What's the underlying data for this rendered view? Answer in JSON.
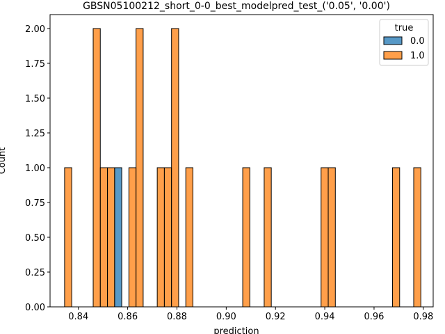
{
  "chart_data": {
    "type": "bar",
    "title": "GBSN05100212_short_0-0_best_modelpred_test_('0.05', '0.00')",
    "xlabel": "prediction",
    "ylabel": "Count",
    "xlim": [
      0.8285,
      0.984
    ],
    "ylim": [
      0,
      2.1
    ],
    "x_ticks": [
      0.84,
      0.86,
      0.88,
      0.9,
      0.92,
      0.94,
      0.96,
      0.98
    ],
    "x_tick_labels": [
      "0.84",
      "0.86",
      "0.88",
      "0.90",
      "0.92",
      "0.94",
      "0.96",
      "0.98"
    ],
    "y_ticks": [
      0.0,
      0.25,
      0.5,
      0.75,
      1.0,
      1.25,
      1.5,
      1.75,
      2.0
    ],
    "y_tick_labels": [
      "0.00",
      "0.25",
      "0.50",
      "0.75",
      "1.00",
      "1.25",
      "1.50",
      "1.75",
      "2.00"
    ],
    "bin_width": 0.00289,
    "legend": {
      "title": "true",
      "placement": "top-right"
    },
    "series": [
      {
        "name": "0.0",
        "color": "#1f77b4",
        "bins": [
          {
            "x0": 0.8547,
            "count": 1
          }
        ]
      },
      {
        "name": "1.0",
        "color": "#ff7f0e",
        "bins": [
          {
            "x0": 0.8344,
            "count": 1
          },
          {
            "x0": 0.846,
            "count": 2
          },
          {
            "x0": 0.8489,
            "count": 1
          },
          {
            "x0": 0.8518,
            "count": 1
          },
          {
            "x0": 0.8605,
            "count": 1
          },
          {
            "x0": 0.8634,
            "count": 2
          },
          {
            "x0": 0.872,
            "count": 1
          },
          {
            "x0": 0.8749,
            "count": 1
          },
          {
            "x0": 0.8778,
            "count": 2
          },
          {
            "x0": 0.8836,
            "count": 1
          },
          {
            "x0": 0.9067,
            "count": 1
          },
          {
            "x0": 0.9154,
            "count": 1
          },
          {
            "x0": 0.9385,
            "count": 1
          },
          {
            "x0": 0.9414,
            "count": 1
          },
          {
            "x0": 0.9675,
            "count": 1
          },
          {
            "x0": 0.9761,
            "count": 1
          }
        ]
      }
    ],
    "grid": false
  }
}
